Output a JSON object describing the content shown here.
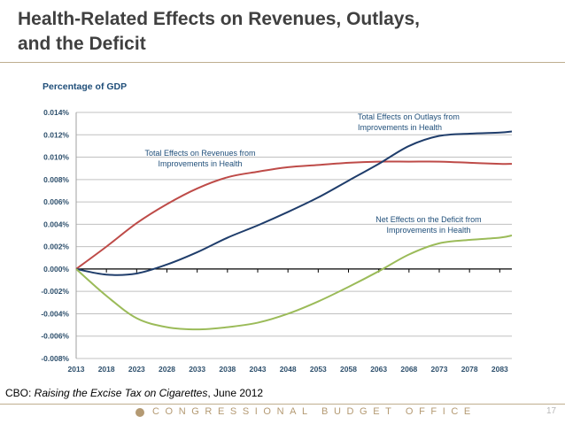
{
  "slide": {
    "title_line1": "Health-Related Effects on Revenues, Outlays,",
    "title_line2": "and the Deficit",
    "source_prefix": "CBO: ",
    "source_title": "Raising the Excise Tax on Cigarettes",
    "source_suffix": ", June 2012",
    "footer_text": "CONGRESSIONAL BUDGET OFFICE",
    "footer_logo_icon": "cbo-seal-icon",
    "page_number": "17"
  },
  "chart_data": {
    "type": "line",
    "title": "Health-Related Effects on Revenues, Outlays, and the Deficit",
    "ylabel": "Percentage of GDP",
    "xlabel": "",
    "ylim": [
      -0.008,
      0.014
    ],
    "xlim": [
      2013,
      2085
    ],
    "yticks": [
      0.014,
      0.012,
      0.01,
      0.008,
      0.006,
      0.004,
      0.002,
      0.0,
      -0.002,
      -0.004,
      -0.006,
      -0.008
    ],
    "ytick_labels": [
      "0.014%",
      "0.012%",
      "0.010%",
      "0.008%",
      "0.006%",
      "0.004%",
      "0.002%",
      "0.000%",
      "-0.002%",
      "-0.004%",
      "-0.006%",
      "-0.008%"
    ],
    "xtick_labels": [
      "2013",
      "2018",
      "2023",
      "2028",
      "2033",
      "2038",
      "2043",
      "2048",
      "2053",
      "2058",
      "2063",
      "2068",
      "2073",
      "2078",
      "2083"
    ],
    "grid": true,
    "legend": "none (inline annotations)",
    "x": [
      2013,
      2018,
      2023,
      2028,
      2033,
      2038,
      2043,
      2048,
      2053,
      2058,
      2063,
      2068,
      2073,
      2078,
      2083,
      2085
    ],
    "series": [
      {
        "name": "Total Effects on Revenues from Improvements in Health",
        "label_lines": [
          "Total Effects on Revenues from",
          "Improvements in Health"
        ],
        "color": "#be4b48",
        "values": [
          0.0,
          0.002,
          0.0041,
          0.0058,
          0.0072,
          0.0082,
          0.0087,
          0.0091,
          0.0093,
          0.0095,
          0.0096,
          0.0096,
          0.0096,
          0.0095,
          0.0094,
          0.0094
        ]
      },
      {
        "name": "Total Effects on Outlays from Improvements in Health",
        "label_lines": [
          "Total Effects on Outlays from",
          "Improvements in Health"
        ],
        "color": "#1f3d6b",
        "values": [
          0.0,
          -0.0005,
          -0.0004,
          0.0004,
          0.0015,
          0.0028,
          0.0039,
          0.0051,
          0.0064,
          0.0079,
          0.0094,
          0.011,
          0.0119,
          0.0121,
          0.0122,
          0.0123
        ]
      },
      {
        "name": "Net Effects on the Deficit from Improvements in Health",
        "label_lines": [
          "Net Effects on the Deficit from",
          "Improvements in Health"
        ],
        "color": "#9bbb59",
        "values": [
          0.0,
          -0.0024,
          -0.0044,
          -0.0052,
          -0.0054,
          -0.0052,
          -0.0048,
          -0.004,
          -0.0029,
          -0.0016,
          -0.0002,
          0.0013,
          0.0023,
          0.0026,
          0.0028,
          0.003
        ]
      }
    ]
  }
}
